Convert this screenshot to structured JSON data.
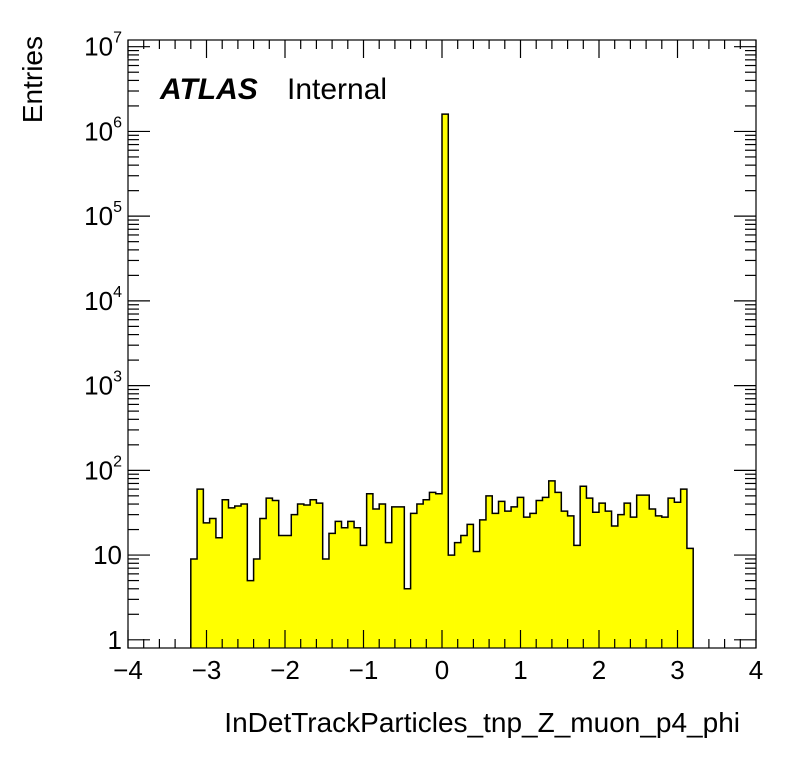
{
  "chart_data": {
    "type": "histogram",
    "title": "",
    "xlabel": "InDetTrackParticles_tnp_Z_muon_p4_phi",
    "ylabel": "Entries",
    "xlim": [
      -4,
      4
    ],
    "ylim": [
      0.8,
      12000000
    ],
    "yscale": "log",
    "grid": false,
    "fill_color": "#ffff00",
    "line_color": "#000000",
    "annotation": {
      "label_bold": "ATLAS",
      "label": "Internal"
    },
    "x_ticks": [
      {
        "value": -4,
        "label": "−4"
      },
      {
        "value": -3,
        "label": "−3"
      },
      {
        "value": -2,
        "label": "−2"
      },
      {
        "value": -1,
        "label": "−1"
      },
      {
        "value": 0,
        "label": "0"
      },
      {
        "value": 1,
        "label": "1"
      },
      {
        "value": 2,
        "label": "2"
      },
      {
        "value": 3,
        "label": "3"
      },
      {
        "value": 4,
        "label": "4"
      }
    ],
    "y_ticks": [
      {
        "value": 1,
        "base": "1",
        "exp": ""
      },
      {
        "value": 10,
        "base": "10",
        "exp": ""
      },
      {
        "value": 100,
        "base": "10",
        "exp": "2"
      },
      {
        "value": 1000,
        "base": "10",
        "exp": "3"
      },
      {
        "value": 10000,
        "base": "10",
        "exp": "4"
      },
      {
        "value": 100000,
        "base": "10",
        "exp": "5"
      },
      {
        "value": 1000000,
        "base": "10",
        "exp": "6"
      },
      {
        "value": 10000000,
        "base": "10",
        "exp": "7"
      }
    ],
    "bin_start": -3.2,
    "bin_width": 0.08,
    "values": [
      9,
      60,
      24,
      27,
      16,
      45,
      36,
      38,
      40,
      5,
      9,
      27,
      47,
      44,
      17,
      17,
      30,
      40,
      39,
      45,
      41,
      9,
      18,
      25,
      21,
      25,
      21,
      13,
      53,
      35,
      40,
      14,
      37,
      37,
      4,
      31,
      40,
      45,
      55,
      53,
      1600000,
      10,
      14,
      17,
      23,
      11,
      26,
      50,
      31,
      43,
      33,
      37,
      48,
      28,
      31,
      44,
      48,
      75,
      55,
      33,
      29,
      13,
      65,
      47,
      32,
      41,
      33,
      22,
      30,
      41,
      28,
      51,
      51,
      35,
      29,
      28,
      47,
      42,
      60,
      12
    ]
  }
}
